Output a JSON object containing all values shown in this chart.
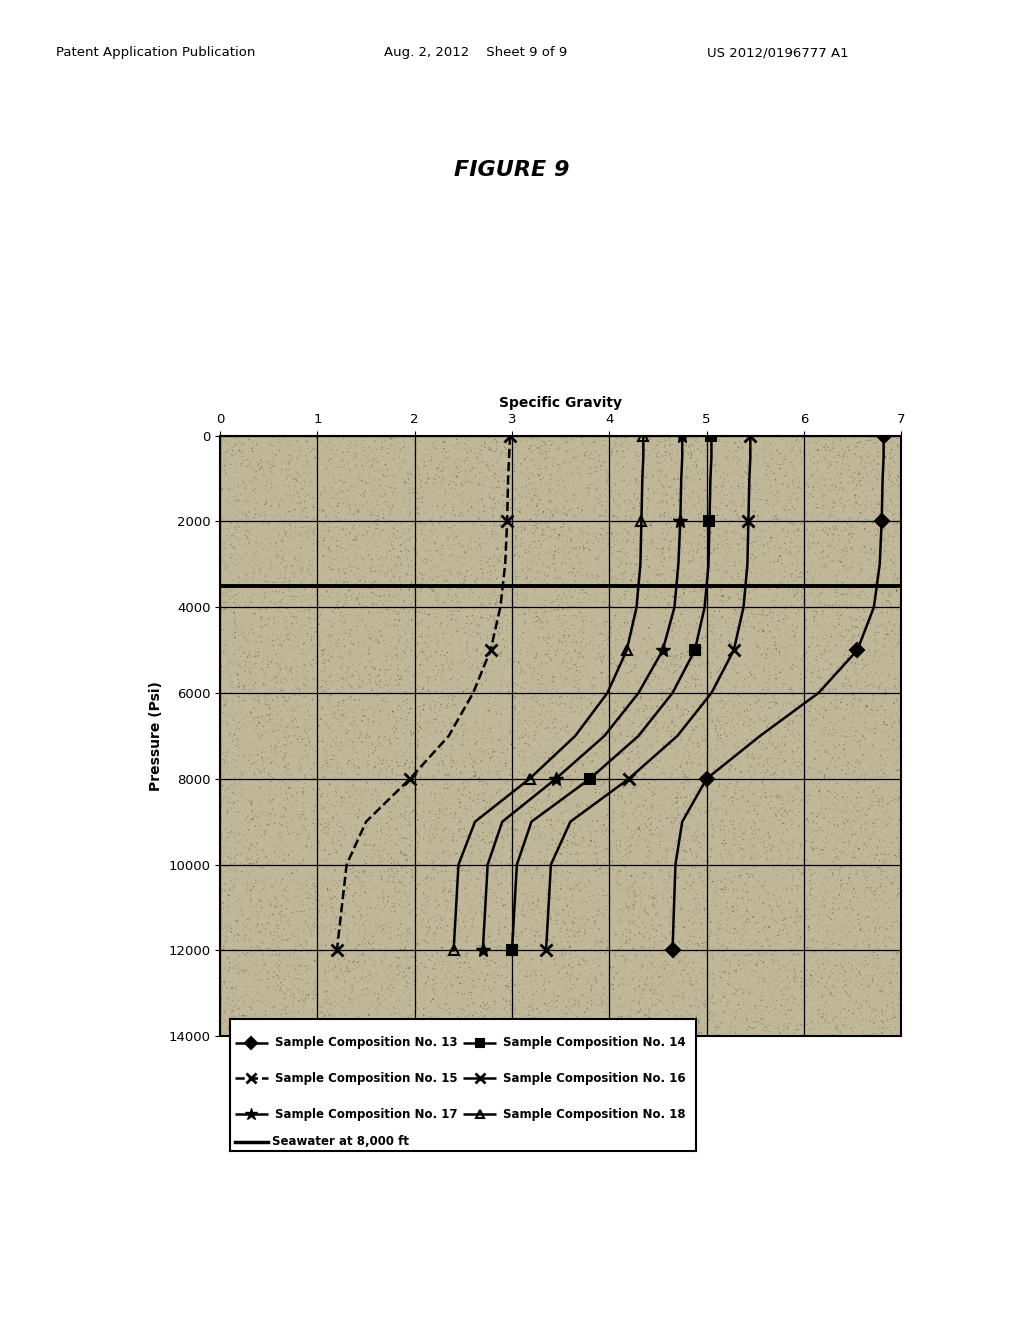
{
  "title": "FIGURE 9",
  "xlabel": "Specific Gravity",
  "ylabel": "Pressure (Psi)",
  "xlim": [
    0,
    7
  ],
  "ylim": [
    14000,
    0
  ],
  "xticks": [
    0,
    1,
    2,
    3,
    4,
    5,
    6,
    7
  ],
  "yticks": [
    0,
    2000,
    4000,
    6000,
    8000,
    10000,
    12000,
    14000
  ],
  "seawater_pressure": 3500,
  "header_left": "Patent Application Publication",
  "header_mid": "Aug. 2, 2012    Sheet 9 of 9",
  "header_right": "US 2012/0196777 A1",
  "series": [
    {
      "label": "Sample Composition No. 13",
      "marker": "D",
      "linestyle": "-",
      "points_sg": [
        6.82,
        6.82,
        6.81,
        6.8,
        6.78,
        6.72,
        6.55,
        6.15,
        5.55,
        5.0,
        4.75,
        4.68,
        4.65
      ],
      "points_psi": [
        0,
        500,
        1000,
        2000,
        3000,
        4000,
        5000,
        6000,
        7000,
        8000,
        9000,
        10000,
        12000
      ]
    },
    {
      "label": "Sample Composition No. 14",
      "marker": "s",
      "linestyle": "-",
      "points_sg": [
        5.05,
        5.05,
        5.04,
        5.03,
        5.02,
        4.98,
        4.88,
        4.65,
        4.3,
        3.8,
        3.2,
        3.05,
        3.0
      ],
      "points_psi": [
        0,
        500,
        1000,
        2000,
        3000,
        4000,
        5000,
        6000,
        7000,
        8000,
        9000,
        10000,
        12000
      ]
    },
    {
      "label": "Sample Composition No. 15",
      "marker": "x",
      "linestyle": "--",
      "points_sg": [
        2.98,
        2.97,
        2.96,
        2.95,
        2.93,
        2.88,
        2.78,
        2.6,
        2.35,
        1.95,
        1.5,
        1.3,
        1.2
      ],
      "points_psi": [
        0,
        500,
        1000,
        2000,
        3000,
        4000,
        5000,
        6000,
        7000,
        8000,
        9000,
        10000,
        12000
      ]
    },
    {
      "label": "Sample Composition No. 16",
      "marker": "x",
      "linestyle": "-",
      "points_sg": [
        5.45,
        5.45,
        5.44,
        5.43,
        5.42,
        5.38,
        5.28,
        5.05,
        4.7,
        4.2,
        3.6,
        3.4,
        3.35
      ],
      "points_psi": [
        0,
        500,
        1000,
        2000,
        3000,
        4000,
        5000,
        6000,
        7000,
        8000,
        9000,
        10000,
        12000
      ]
    },
    {
      "label": "Sample Composition No. 17",
      "marker": "*",
      "linestyle": "-",
      "points_sg": [
        4.75,
        4.75,
        4.74,
        4.73,
        4.71,
        4.67,
        4.55,
        4.3,
        3.95,
        3.45,
        2.9,
        2.75,
        2.7
      ],
      "points_psi": [
        0,
        500,
        1000,
        2000,
        3000,
        4000,
        5000,
        6000,
        7000,
        8000,
        9000,
        10000,
        12000
      ]
    },
    {
      "label": "Sample Composition No. 18",
      "marker": "^",
      "linestyle": "-",
      "points_sg": [
        4.35,
        4.35,
        4.34,
        4.33,
        4.32,
        4.28,
        4.18,
        3.98,
        3.65,
        3.18,
        2.62,
        2.45,
        2.4
      ],
      "points_psi": [
        0,
        500,
        1000,
        2000,
        3000,
        4000,
        5000,
        6000,
        7000,
        8000,
        9000,
        10000,
        12000
      ]
    }
  ],
  "background_color": "#ffffff",
  "plot_bg_base": "#c0b898"
}
